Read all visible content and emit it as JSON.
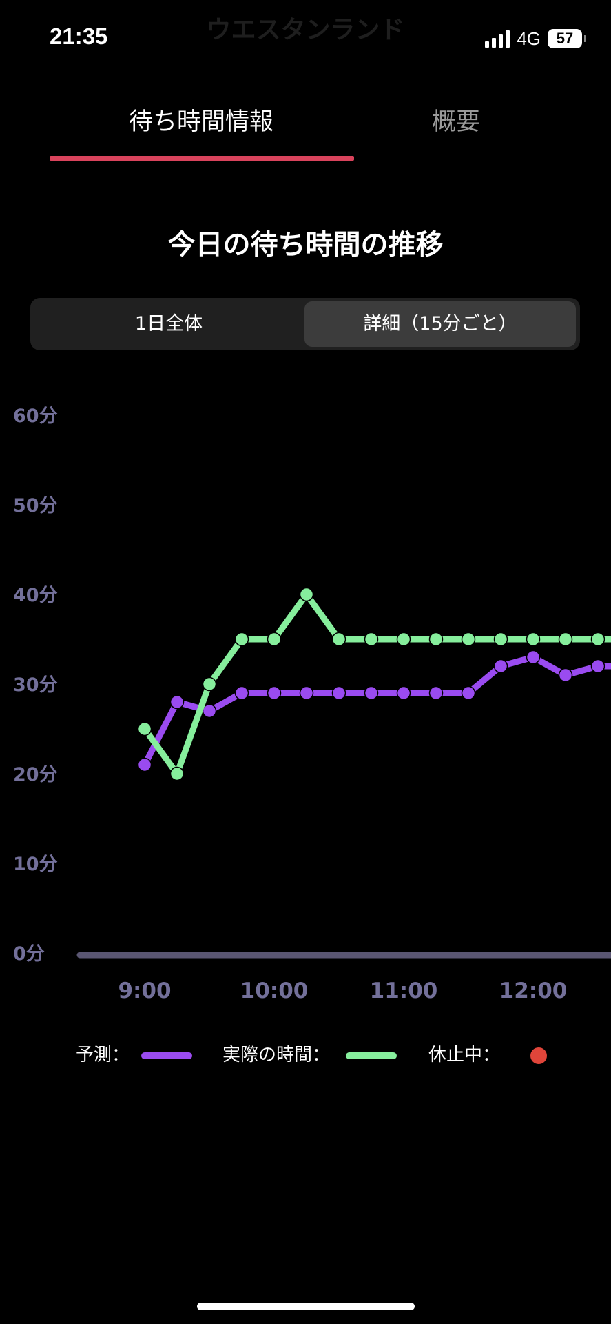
{
  "status": {
    "time": "21:35",
    "network": "4G",
    "battery": "57",
    "ghost_title": "ウエスタンランド"
  },
  "tabs": [
    {
      "label": "待ち時間情報",
      "active": true
    },
    {
      "label": "概要",
      "active": false
    }
  ],
  "section_title": "今日の待ち時間の推移",
  "segment": {
    "all": "1日全体",
    "detail": "詳細（15分ごと）",
    "selected": "detail"
  },
  "legend": {
    "predicted": "予測：",
    "actual": "実際の時間：",
    "closed": "休止中：",
    "predicted_color": "#9a4bf0",
    "actual_color": "#86ee9c",
    "closed_color": "#e0453a"
  },
  "chart_data": {
    "type": "line",
    "y_tick_labels": [
      "0分",
      "10分",
      "20分",
      "30分",
      "40分",
      "50分",
      "60分"
    ],
    "ylim": [
      0,
      60
    ],
    "x_tick_labels": [
      "9:00",
      "10:00",
      "11:00",
      "12:00"
    ],
    "x_ticks_hours": [
      9,
      10,
      11,
      12
    ],
    "xlim_hours": [
      8.5,
      12.6
    ],
    "grid": false,
    "series": [
      {
        "id": "predicted",
        "color": "#9a4bf0",
        "points": [
          [
            9.0,
            21
          ],
          [
            9.25,
            28
          ],
          [
            9.5,
            27
          ],
          [
            9.75,
            29
          ],
          [
            10.0,
            29
          ],
          [
            10.25,
            29
          ],
          [
            10.5,
            29
          ],
          [
            10.75,
            29
          ],
          [
            11.0,
            29
          ],
          [
            11.25,
            29
          ],
          [
            11.5,
            29
          ],
          [
            11.75,
            32
          ],
          [
            12.0,
            33
          ],
          [
            12.25,
            31
          ],
          [
            12.5,
            32
          ],
          [
            12.75,
            32
          ]
        ]
      },
      {
        "id": "actual",
        "color": "#86ee9c",
        "points": [
          [
            9.0,
            25
          ],
          [
            9.25,
            20
          ],
          [
            9.5,
            30
          ],
          [
            9.75,
            35
          ],
          [
            10.0,
            35
          ],
          [
            10.25,
            40
          ],
          [
            10.5,
            35
          ],
          [
            10.75,
            35
          ],
          [
            11.0,
            35
          ],
          [
            11.25,
            35
          ],
          [
            11.5,
            35
          ],
          [
            11.75,
            35
          ],
          [
            12.0,
            35
          ],
          [
            12.25,
            35
          ],
          [
            12.5,
            35
          ],
          [
            12.75,
            35
          ]
        ]
      }
    ]
  }
}
